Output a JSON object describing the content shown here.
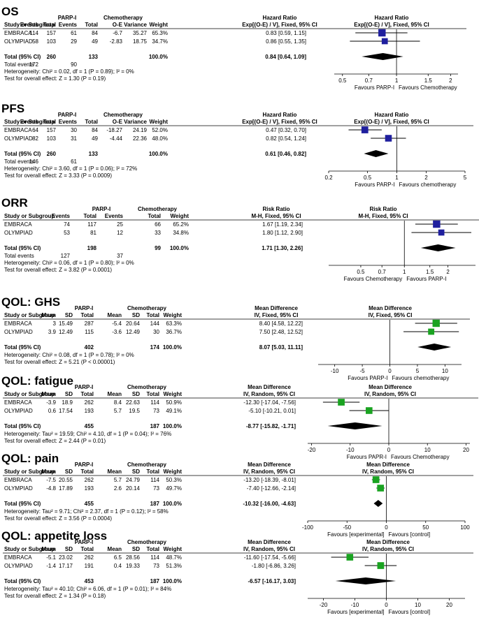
{
  "chart_data": [
    {
      "type": "forest",
      "title": "OS",
      "group_labels": [
        "PARP-I",
        "Chemotherapy"
      ],
      "columns": [
        "Study or Subgroup",
        "Events",
        "Total",
        "Events",
        "Total",
        "O-E",
        "Variance",
        "Weight",
        "Hazard Ratio Exp[(O-E) / V], Fixed, 95% CI"
      ],
      "effect_header": [
        "Hazard Ratio",
        "Exp[(O-E) / V], Fixed, 95% CI"
      ],
      "plot_header": [
        "Hazard Ratio",
        "Exp[(O-E) / V], Fixed, 95% CI"
      ],
      "studies": [
        {
          "name": "EMBRACA",
          "cells": [
            "114",
            "157",
            "61",
            "84",
            "-6.7",
            "35.27",
            "65.3%"
          ],
          "ci_text": "0.83 [0.59, 1.15]",
          "est": 0.83,
          "lo": 0.59,
          "hi": 1.15,
          "weight": 65.3
        },
        {
          "name": "OLYMPIAD",
          "cells": [
            "58",
            "103",
            "29",
            "49",
            "-2.83",
            "18.75",
            "34.7%"
          ],
          "ci_text": "0.86 [0.55, 1.35]",
          "est": 0.86,
          "lo": 0.55,
          "hi": 1.35,
          "weight": 34.7
        }
      ],
      "total": {
        "label": "Total (95% CI)",
        "cells": [
          "",
          "260",
          "",
          "133",
          "",
          "",
          "100.0%"
        ],
        "ci_text": "0.84 [0.64, 1.09]",
        "est": 0.84,
        "lo": 0.64,
        "hi": 1.09
      },
      "extra_lines": [
        {
          "label": "Total events",
          "cells": [
            "172",
            "",
            "90",
            "",
            "",
            "",
            ""
          ]
        },
        {
          "label": "Heterogeneity: Chi² = 0.02, df = 1 (P = 0.89); I² = 0%",
          "cells": []
        },
        {
          "label": "Test for overall effect: Z = 1.30 (P = 0.19)",
          "cells": []
        }
      ],
      "axis": {
        "scale": "log",
        "min": 0.45,
        "max": 2.2,
        "null": 1,
        "ticks": [
          "0.5",
          "0.7",
          "1",
          "1.5",
          "2"
        ],
        "tick_values": [
          0.5,
          0.7,
          1,
          1.5,
          2
        ]
      },
      "favours": [
        "Favours PARP-I",
        "Favours Chemotherapy"
      ]
    },
    {
      "type": "forest",
      "title": "PFS",
      "group_labels": [
        "PARP-I",
        "Chemotherapy"
      ],
      "columns": [
        "Study or Subgroup",
        "Events",
        "Total",
        "Events",
        "Total",
        "O-E",
        "Variance",
        "Weight",
        "Hazard Ratio Exp[(O-E) / V], Fixed, 95% CI"
      ],
      "effect_header": [
        "Hazard Ratio",
        "Exp[(O-E) / V], Fixed, 95% CI"
      ],
      "plot_header": [
        "Hazard Ratio",
        "Exp[(O-E) / V], Fixed, 95% CI"
      ],
      "studies": [
        {
          "name": "EMBRACA",
          "cells": [
            "64",
            "157",
            "30",
            "84",
            "-18.27",
            "24.19",
            "52.0%"
          ],
          "ci_text": "0.47 [0.32, 0.70]",
          "est": 0.47,
          "lo": 0.32,
          "hi": 0.7,
          "weight": 52.0
        },
        {
          "name": "OLYMPIAD",
          "cells": [
            "82",
            "103",
            "31",
            "49",
            "-4.44",
            "22.36",
            "48.0%"
          ],
          "ci_text": "0.82 [0.54, 1.24]",
          "est": 0.82,
          "lo": 0.54,
          "hi": 1.24,
          "weight": 48.0
        }
      ],
      "total": {
        "label": "Total (95% CI)",
        "cells": [
          "",
          "260",
          "",
          "133",
          "",
          "",
          "100.0%"
        ],
        "ci_text": "0.61 [0.46, 0.82]",
        "est": 0.61,
        "lo": 0.46,
        "hi": 0.82
      },
      "extra_lines": [
        {
          "label": "Total events",
          "cells": [
            "146",
            "",
            "61",
            "",
            "",
            "",
            ""
          ]
        },
        {
          "label": "Heterogeneity: Chi² = 3.60, df = 1 (P = 0.06); I² = 72%",
          "cells": []
        },
        {
          "label": "Test for overall effect: Z = 3.33 (P = 0.0009)",
          "cells": []
        }
      ],
      "axis": {
        "scale": "log",
        "min": 0.2,
        "max": 5,
        "null": 1,
        "ticks": [
          "0.2",
          "0.5",
          "1",
          "2",
          "5"
        ],
        "tick_values": [
          0.2,
          0.5,
          1,
          2,
          5
        ]
      },
      "favours": [
        "Favours PARP-I",
        "Favours chemotherapy"
      ]
    },
    {
      "type": "forest",
      "title": "ORR",
      "group_labels": [
        "PARP-I",
        "Chemotherapy"
      ],
      "columns": [
        "Study or Subgroup",
        "Events",
        "Total",
        "Events",
        "Total",
        "Weight",
        "Risk Ratio M-H, Fixed, 95% CI"
      ],
      "effect_header": [
        "Risk Ratio",
        "M-H, Fixed, 95% CI"
      ],
      "plot_header": [
        "Risk Ratio",
        "M-H, Fixed, 95% CI"
      ],
      "studies": [
        {
          "name": "EMBRACA",
          "cells": [
            "74",
            "117",
            "25",
            "66",
            "65.2%"
          ],
          "ci_text": "1.67 [1.19, 2.34]",
          "est": 1.67,
          "lo": 1.19,
          "hi": 2.34,
          "weight": 65.2
        },
        {
          "name": "OLYMPIAD",
          "cells": [
            "53",
            "81",
            "12",
            "33",
            "34.8%"
          ],
          "ci_text": "1.80 [1.12, 2.90]",
          "est": 1.8,
          "lo": 1.12,
          "hi": 2.9,
          "weight": 34.8
        }
      ],
      "total": {
        "label": "Total (95% CI)",
        "cells": [
          "",
          "198",
          "",
          "99",
          "100.0%"
        ],
        "ci_text": "1.71 [1.30, 2.26]",
        "est": 1.71,
        "lo": 1.3,
        "hi": 2.26
      },
      "extra_lines": [
        {
          "label": "Total events",
          "cells": [
            "127",
            "",
            "37",
            "",
            ""
          ]
        },
        {
          "label": "Heterogeneity: Chi² = 0.06, df = 1 (P = 0.80); I² = 0%",
          "cells": []
        },
        {
          "label": "Test for overall effect: Z = 3.82 (P = 0.0001)",
          "cells": []
        }
      ],
      "axis": {
        "scale": "log",
        "min": 0.3,
        "max": 3.1,
        "null": 1,
        "ticks": [
          "0.5",
          "0.7",
          "1",
          "1.5",
          "2"
        ],
        "tick_values": [
          0.5,
          0.7,
          1,
          1.5,
          2
        ]
      },
      "favours": [
        "Favours Chemotherapy",
        "Favours PARP-I"
      ]
    },
    {
      "type": "forest",
      "title": "QOL: GHS",
      "group_labels": [
        "PARP-I",
        "Chemotherapy"
      ],
      "columns": [
        "Study or Subgroup",
        "Mean",
        "SD",
        "Total",
        "Mean",
        "SD",
        "Total",
        "Weight",
        "Mean Difference IV, Fixed, 95% CI"
      ],
      "effect_header": [
        "Mean Difference",
        "IV, Fixed, 95% CI"
      ],
      "plot_header": [
        "Mean Difference",
        "IV, Fixed, 95% CI"
      ],
      "studies": [
        {
          "name": "EMBRACA",
          "cells": [
            "3",
            "15.49",
            "287",
            "-5.4",
            "20.64",
            "144",
            "63.3%"
          ],
          "ci_text": "8.40 [4.58, 12.22]",
          "est": 8.4,
          "lo": 4.58,
          "hi": 12.22,
          "weight": 63.3
        },
        {
          "name": "OLYMPIAD",
          "cells": [
            "3.9",
            "12.49",
            "115",
            "-3.6",
            "12.49",
            "30",
            "36.7%"
          ],
          "ci_text": "7.50 [2.48, 12.52]",
          "est": 7.5,
          "lo": 2.48,
          "hi": 12.52,
          "weight": 36.7
        }
      ],
      "total": {
        "label": "Total (95% CI)",
        "cells": [
          "",
          "",
          "402",
          "",
          "",
          "174",
          "100.0%"
        ],
        "ci_text": "8.07 [5.03, 11.11]",
        "est": 8.07,
        "lo": 5.03,
        "hi": 11.11
      },
      "extra_lines": [
        {
          "label": "Heterogeneity: Chi² = 0.08, df = 1 (P = 0.78); I² = 0%",
          "cells": []
        },
        {
          "label": "Test for overall effect: Z = 5.21 (P < 0.00001)",
          "cells": []
        }
      ],
      "axis": {
        "scale": "linear",
        "min": -13,
        "max": 13,
        "null": 0,
        "ticks": [
          "-10",
          "-5",
          "0",
          "5",
          "10"
        ],
        "tick_values": [
          -10,
          -5,
          0,
          5,
          10
        ]
      },
      "favours": [
        "Favours PARP-I",
        "Favours chemotherapy"
      ]
    },
    {
      "type": "forest",
      "title": "QOL: fatigue",
      "group_labels": [
        "PARP-I",
        "Chemotherapy"
      ],
      "columns": [
        "Study or Subgroup",
        "Mean",
        "SD",
        "Total",
        "Mean",
        "SD",
        "Total",
        "Weight",
        "Mean Difference IV, Random, 95% CI"
      ],
      "effect_header": [
        "Mean Difference",
        "IV, Random, 95% CI"
      ],
      "plot_header": [
        "Mean Difference",
        "IV, Random, 95% CI"
      ],
      "studies": [
        {
          "name": "EMBRACA",
          "cells": [
            "-3.9",
            "18.9",
            "262",
            "8.4",
            "22.63",
            "114",
            "50.9%"
          ],
          "ci_text": "-12.30 [-17.04, -7.56]",
          "est": -12.3,
          "lo": -17.04,
          "hi": -7.56,
          "weight": 50.9
        },
        {
          "name": "OLYMPIAD",
          "cells": [
            "0.6",
            "17.54",
            "193",
            "5.7",
            "19.5",
            "73",
            "49.1%"
          ],
          "ci_text": "-5.10 [-10.21, 0.01]",
          "est": -5.1,
          "lo": -10.21,
          "hi": 0.01,
          "weight": 49.1
        }
      ],
      "total": {
        "label": "Total (95% CI)",
        "cells": [
          "",
          "",
          "455",
          "",
          "",
          "187",
          "100.0%"
        ],
        "ci_text": "-8.77 [-15.82, -1.71]",
        "est": -8.77,
        "lo": -15.82,
        "hi": -1.71
      },
      "extra_lines": [
        {
          "label": "Heterogeneity: Tau² = 19.59; Chi² = 4.10, df = 1 (P = 0.04); I² = 76%",
          "cells": []
        },
        {
          "label": "Test for overall effect: Z = 2.44 (P = 0.01)",
          "cells": []
        }
      ],
      "axis": {
        "scale": "linear",
        "min": -21,
        "max": 21,
        "null": 0,
        "ticks": [
          "-20",
          "-10",
          "0",
          "10",
          "20"
        ],
        "tick_values": [
          -20,
          -10,
          0,
          10,
          20
        ]
      },
      "favours": [
        "Favours PAPR-I",
        "Favours Chemotherapy"
      ]
    },
    {
      "type": "forest",
      "title": "QOL: pain",
      "group_labels": [
        "PARP-I",
        "Chemotherapy"
      ],
      "columns": [
        "Study or Subgroup",
        "Mean",
        "SD",
        "Total",
        "Mean",
        "SD",
        "Total",
        "Weight",
        "Mean Difference IV, Random, 95% CI"
      ],
      "effect_header": [
        "Mean Difference",
        "IV, Random, 95% CI"
      ],
      "plot_header": [
        "Mean Difference",
        "IV, Random, 95% CI"
      ],
      "studies": [
        {
          "name": "EMBRACA",
          "cells": [
            "-7.5",
            "20.55",
            "262",
            "5.7",
            "24.79",
            "114",
            "50.3%"
          ],
          "ci_text": "-13.20 [-18.39, -8.01]",
          "est": -13.2,
          "lo": -18.39,
          "hi": -8.01,
          "weight": 50.3
        },
        {
          "name": "OLYMPIAD",
          "cells": [
            "-4.8",
            "17.89",
            "193",
            "2.6",
            "20.14",
            "73",
            "49.7%"
          ],
          "ci_text": "-7.40 [-12.66, -2.14]",
          "est": -7.4,
          "lo": -12.66,
          "hi": -2.14,
          "weight": 49.7
        }
      ],
      "total": {
        "label": "Total (95% CI)",
        "cells": [
          "",
          "",
          "455",
          "",
          "",
          "187",
          "100.0%"
        ],
        "ci_text": "-10.32 [-16.00, -4.63]",
        "est": -10.32,
        "lo": -16.0,
        "hi": -4.63
      },
      "extra_lines": [
        {
          "label": "Heterogeneity: Tau² = 9.71; Chi² = 2.37, df = 1 (P = 0.12); I² = 58%",
          "cells": []
        },
        {
          "label": "Test for overall effect: Z = 3.56 (P = 0.0004)",
          "cells": []
        }
      ],
      "axis": {
        "scale": "linear",
        "min": -100,
        "max": 100,
        "null": 0,
        "ticks": [
          "-100",
          "-50",
          "0",
          "50",
          "100"
        ],
        "tick_values": [
          -100,
          -50,
          0,
          50,
          100
        ]
      },
      "favours": [
        "Favours [experimental]",
        "Favours [control]"
      ]
    },
    {
      "type": "forest",
      "title": "QOL: appetite loss",
      "group_labels": [
        "PARP-I",
        "Chemotherapy"
      ],
      "columns": [
        "Study or Subgroup",
        "Mean",
        "SD",
        "Total",
        "Mean",
        "SD",
        "Total",
        "Weight",
        "Mean Difference IV, Random, 95% CI"
      ],
      "effect_header": [
        "Mean Difference",
        "IV, Random, 95% CI"
      ],
      "plot_header": [
        "Mean Difference",
        "IV, Random, 95% CI"
      ],
      "studies": [
        {
          "name": "EMBRACA",
          "cells": [
            "-5.1",
            "23.02",
            "262",
            "6.5",
            "28.56",
            "114",
            "48.7%"
          ],
          "ci_text": "-11.60 [-17.54, -5.66]",
          "est": -11.6,
          "lo": -17.54,
          "hi": -5.66,
          "weight": 48.7
        },
        {
          "name": "OLYMPIAD",
          "cells": [
            "-1.4",
            "17.17",
            "191",
            "0.4",
            "19.33",
            "73",
            "51.3%"
          ],
          "ci_text": "-1.80 [-6.86, 3.26]",
          "est": -1.8,
          "lo": -6.86,
          "hi": 3.26,
          "weight": 51.3
        }
      ],
      "total": {
        "label": "Total (95% CI)",
        "cells": [
          "",
          "",
          "453",
          "",
          "",
          "187",
          "100.0%"
        ],
        "ci_text": "-6.57 [-16.17, 3.03]",
        "est": -6.57,
        "lo": -16.17,
        "hi": 3.03
      },
      "extra_lines": [
        {
          "label": "Heterogeneity: Tau² = 40.10; Chi² = 6.06, df = 1 (P = 0.01); I² = 84%",
          "cells": []
        },
        {
          "label": "Test for overall effect: Z = 1.34 (P = 0.18)",
          "cells": []
        }
      ],
      "axis": {
        "scale": "linear",
        "min": -25,
        "max": 25,
        "null": 0,
        "ticks": [
          "-20",
          "-10",
          "0",
          "10",
          "20"
        ],
        "tick_values": [
          -20,
          -10,
          0,
          10,
          20
        ]
      },
      "favours": [
        "Favours [experimental]",
        "Favours [control]"
      ]
    }
  ],
  "colors": {
    "study_square_blue": "#1f1f9e",
    "study_square_green": "#1aa321",
    "diamond": "#000000",
    "text": "#000000",
    "rule": "#000000"
  }
}
